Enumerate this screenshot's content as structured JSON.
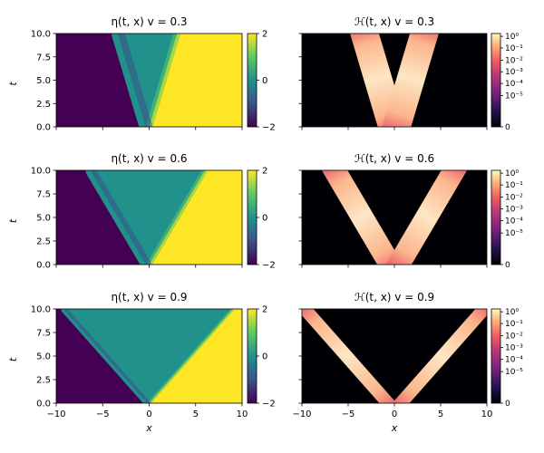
{
  "figure": {
    "colors": {
      "eta_low": "#440154",
      "eta_mid": "#21918c",
      "eta_high": "#fde725",
      "heat_bg": "#000004",
      "heat_peak": "#fcfdbf"
    }
  },
  "chart_data": [
    {
      "type": "heatmap",
      "field": "eta",
      "title": "η(t, x)   v = 0.3",
      "v": 0.3,
      "xlabel": "",
      "ylabel": "t",
      "xlim": [
        -10,
        10
      ],
      "ylim": [
        0,
        10
      ],
      "xticks": [],
      "yticks": [
        "0.0",
        "2.5",
        "5.0",
        "7.5",
        "10.0"
      ],
      "colorbar": {
        "ticks": [
          "2",
          "0",
          "−2"
        ],
        "range": [
          -2,
          2
        ],
        "colormap": "viridis"
      },
      "kink_center_crossing": 0,
      "kink_halfwidth": 1.5
    },
    {
      "type": "heatmap",
      "field": "H",
      "title": "ℋ(t, x)   v = 0.3",
      "v": 0.3,
      "xlabel": "",
      "ylabel": "",
      "xlim": [
        -10,
        10
      ],
      "ylim": [
        0,
        10
      ],
      "xticks": [],
      "yticks": [],
      "colorbar": {
        "ticks": [
          "10⁰",
          "10⁻¹",
          "10⁻²",
          "10⁻³",
          "10⁻⁴",
          "10⁻⁵",
          "0"
        ],
        "scale": "symlog",
        "colormap": "magma"
      },
      "band_halfwidth": 1.5
    },
    {
      "type": "heatmap",
      "field": "eta",
      "title": "η(t, x)   v = 0.6",
      "v": 0.6,
      "xlabel": "",
      "ylabel": "t",
      "xlim": [
        -10,
        10
      ],
      "ylim": [
        0,
        10
      ],
      "xticks": [],
      "yticks": [
        "0.0",
        "2.5",
        "5.0",
        "7.5",
        "10.0"
      ],
      "colorbar": {
        "ticks": [
          "2",
          "0",
          "−2"
        ],
        "range": [
          -2,
          2
        ],
        "colormap": "viridis"
      },
      "kink_center_crossing": 0,
      "kink_halfwidth": 1.2
    },
    {
      "type": "heatmap",
      "field": "H",
      "title": "ℋ(t, x)   v = 0.6",
      "v": 0.6,
      "xlabel": "",
      "ylabel": "",
      "xlim": [
        -10,
        10
      ],
      "ylim": [
        0,
        10
      ],
      "xticks": [],
      "yticks": [],
      "colorbar": {
        "ticks": [
          "10⁰",
          "10⁻¹",
          "10⁻²",
          "10⁻³",
          "10⁻⁴",
          "10⁻⁵",
          "0"
        ],
        "scale": "symlog",
        "colormap": "magma"
      },
      "band_halfwidth": 1.2
    },
    {
      "type": "heatmap",
      "field": "eta",
      "title": "η(t, x)   v = 0.9",
      "v": 0.9,
      "xlabel": "x",
      "ylabel": "t",
      "xlim": [
        -10,
        10
      ],
      "ylim": [
        0,
        10
      ],
      "xticks": [
        "−10",
        "−5",
        "0",
        "5",
        "10"
      ],
      "yticks": [
        "0.0",
        "2.5",
        "5.0",
        "7.5",
        "10.0"
      ],
      "colorbar": {
        "ticks": [
          "2",
          "0",
          "−2"
        ],
        "range": [
          -2,
          2
        ],
        "colormap": "viridis"
      },
      "kink_center_crossing": 0,
      "kink_halfwidth": 0.7
    },
    {
      "type": "heatmap",
      "field": "H",
      "title": "ℋ(t, x)   v = 0.9",
      "v": 0.9,
      "xlabel": "x",
      "ylabel": "",
      "xlim": [
        -10,
        10
      ],
      "ylim": [
        0,
        10
      ],
      "xticks": [
        "−10",
        "−5",
        "0",
        "5",
        "10"
      ],
      "yticks": [],
      "colorbar": {
        "ticks": [
          "10⁰",
          "10⁻¹",
          "10⁻²",
          "10⁻³",
          "10⁻⁴",
          "10⁻⁵",
          "0"
        ],
        "scale": "symlog",
        "colormap": "magma"
      },
      "band_halfwidth": 0.7
    }
  ]
}
